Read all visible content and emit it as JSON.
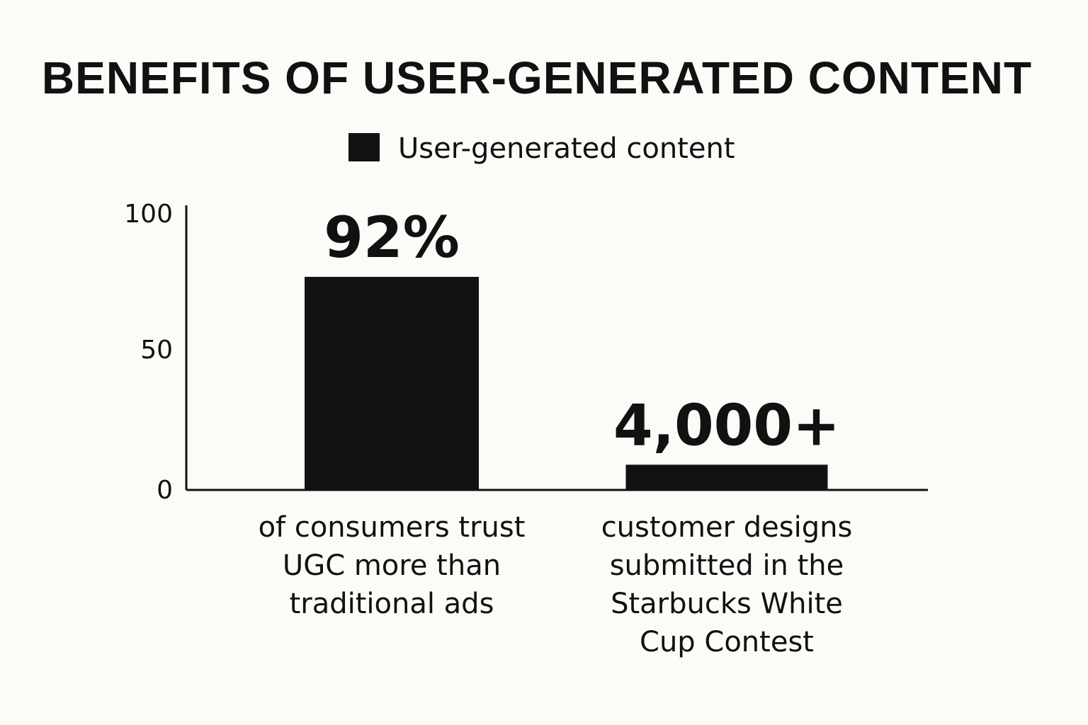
{
  "colors": {
    "background": "#fcfbf7",
    "bar": "#111111",
    "text": "#111111"
  },
  "chart_data": {
    "type": "bar",
    "title": "BENEFITS OF USER-GENERATED CONTENT",
    "legend": {
      "position": "top-center",
      "entries": [
        "User-generated content"
      ]
    },
    "categories": [
      [
        "of consumers trust",
        "UGC more than",
        "traditional ads"
      ],
      [
        "customer designs",
        "submitted in the",
        "Starbucks White",
        "Cup Contest"
      ]
    ],
    "series": [
      {
        "name": "User-generated content",
        "values": [
          76,
          9
        ],
        "data_labels": [
          "92%",
          "4,000+"
        ]
      }
    ],
    "yticks": [
      "0",
      "50",
      "100"
    ],
    "ylim": [
      0,
      100
    ],
    "grid": false,
    "xlabel": "",
    "ylabel": ""
  }
}
